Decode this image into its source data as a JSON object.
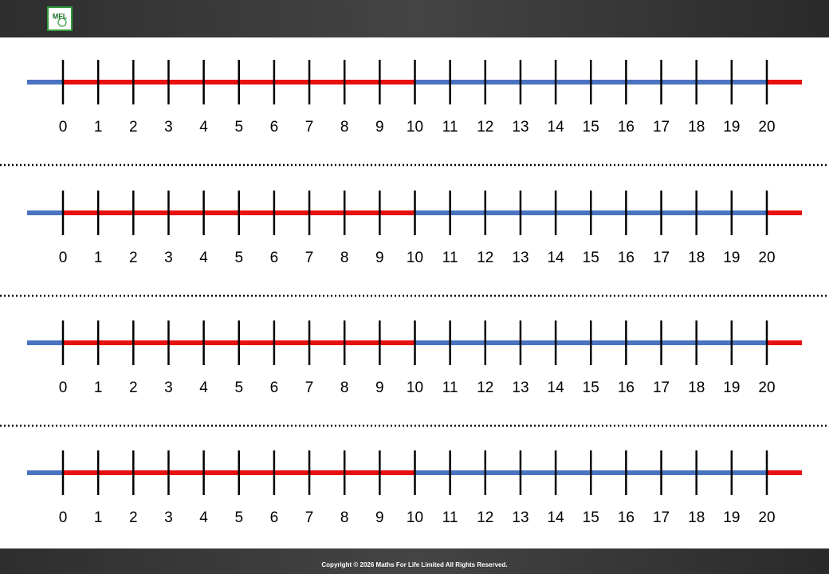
{
  "header": {
    "logo": "MFL"
  },
  "number_lines": [
    {
      "ticks": [
        0,
        1,
        2,
        3,
        4,
        5,
        6,
        7,
        8,
        9,
        10,
        11,
        12,
        13,
        14,
        15,
        16,
        17,
        18,
        19,
        20
      ]
    },
    {
      "ticks": [
        0,
        1,
        2,
        3,
        4,
        5,
        6,
        7,
        8,
        9,
        10,
        11,
        12,
        13,
        14,
        15,
        16,
        17,
        18,
        19,
        20
      ]
    },
    {
      "ticks": [
        0,
        1,
        2,
        3,
        4,
        5,
        6,
        7,
        8,
        9,
        10,
        11,
        12,
        13,
        14,
        15,
        16,
        17,
        18,
        19,
        20
      ]
    },
    {
      "ticks": [
        0,
        1,
        2,
        3,
        4,
        5,
        6,
        7,
        8,
        9,
        10,
        11,
        12,
        13,
        14,
        15,
        16,
        17,
        18,
        19,
        20
      ]
    }
  ],
  "footer": {
    "copyright": "Copyright © 2026 Maths For Life Limited All Rights Reserved."
  }
}
